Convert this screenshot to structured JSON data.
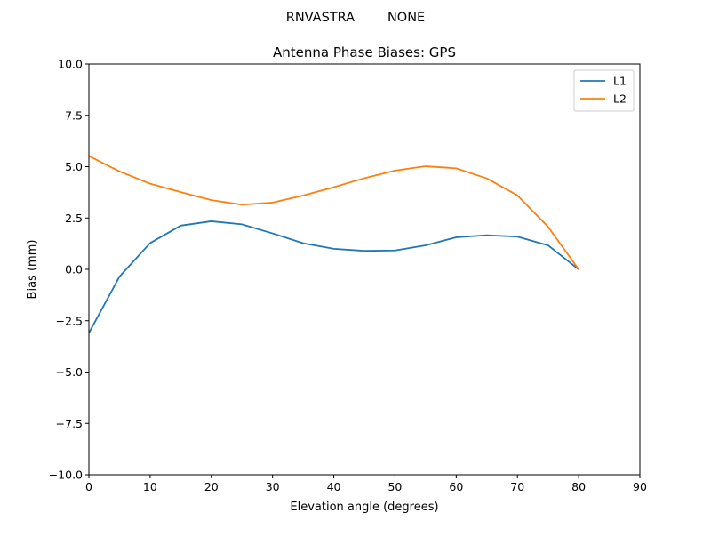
{
  "figure": {
    "suptitle": "RNVASTRA        NONE"
  },
  "chart_data": {
    "type": "line",
    "title": "Antenna Phase Biases: GPS",
    "xlabel": "Elevation angle (degrees)",
    "ylabel": "Bias (mm)",
    "xlim": [
      0,
      90
    ],
    "ylim": [
      -10,
      10
    ],
    "xticks": [
      0,
      10,
      20,
      30,
      40,
      50,
      60,
      70,
      80,
      90
    ],
    "yticks": [
      -10.0,
      -7.5,
      -5.0,
      -2.5,
      0.0,
      2.5,
      5.0,
      7.5,
      10.0
    ],
    "xtick_labels": [
      "0",
      "10",
      "20",
      "30",
      "40",
      "50",
      "60",
      "70",
      "80",
      "90"
    ],
    "ytick_labels": [
      "−10.0",
      "−7.5",
      "−5.0",
      "−2.5",
      "0.0",
      "2.5",
      "5.0",
      "7.5",
      "10.0"
    ],
    "grid": false,
    "legend": "top-right",
    "x": [
      0,
      5,
      10,
      15,
      20,
      25,
      30,
      35,
      40,
      45,
      50,
      55,
      60,
      65,
      70,
      75,
      80
    ],
    "series": [
      {
        "name": "L1",
        "color": "#1f77b4",
        "values": [
          -3.1,
          -0.35,
          1.28,
          2.13,
          2.34,
          2.19,
          1.75,
          1.27,
          1.0,
          0.9,
          0.92,
          1.17,
          1.56,
          1.66,
          1.59,
          1.17,
          0.0
        ]
      },
      {
        "name": "L2",
        "color": "#ff7f0e",
        "values": [
          5.52,
          4.77,
          4.17,
          3.76,
          3.37,
          3.15,
          3.25,
          3.6,
          4.0,
          4.44,
          4.81,
          5.02,
          4.92,
          4.43,
          3.6,
          2.07,
          0.0
        ]
      }
    ]
  }
}
